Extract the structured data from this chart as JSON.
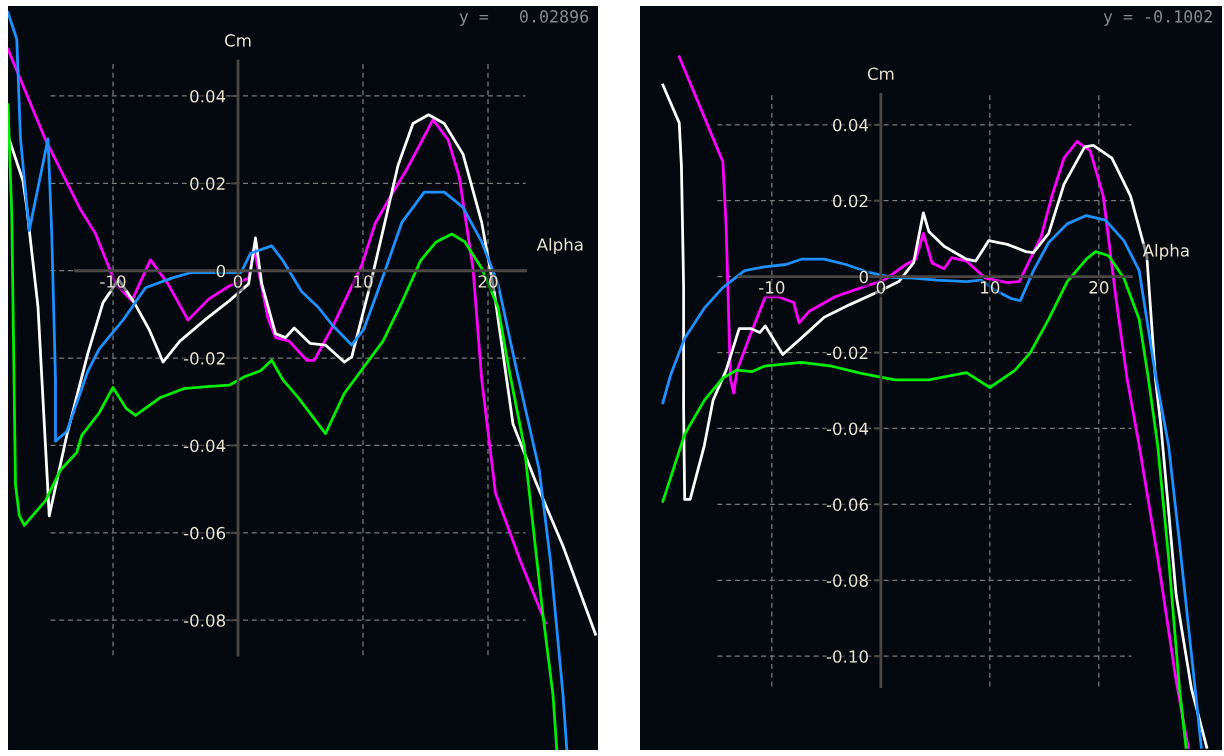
{
  "chart_data": [
    {
      "type": "line",
      "xlabel": "Alpha",
      "ylabel": "Cm",
      "xlim": [
        -18.4,
        28.8
      ],
      "ylim": [
        -0.1097,
        0.0606
      ],
      "xticks": [
        -10,
        0,
        10,
        20
      ],
      "yticks": [
        -0.08,
        -0.06,
        -0.04,
        -0.02,
        0,
        0.02,
        0.04
      ],
      "grid": true,
      "annotations": [
        "y =   0.02896"
      ],
      "series": [
        {
          "color": "#ff00ff",
          "x": [
            -18.4,
            -15.4,
            -12.6,
            -11.4,
            -9.8,
            -8.5,
            -7.0,
            -5.6,
            -4.0,
            -2.35,
            -0.7,
            0.85,
            1.3,
            2.4,
            3.0,
            4.1,
            5.5,
            6.1,
            7.6,
            9.9,
            11.0,
            12.2,
            13.6,
            15.6,
            16.8,
            17.7,
            18.8,
            19.5,
            20.6,
            22.6,
            24.6
          ],
          "values": [
            0.0507,
            0.03,
            0.014,
            0.0085,
            -0.003,
            -0.0069,
            0.0025,
            -0.003,
            -0.0113,
            -0.0065,
            -0.0035,
            -0.0017,
            0.0049,
            -0.0109,
            -0.0153,
            -0.0161,
            -0.0205,
            -0.0205,
            -0.0126,
            0.0013,
            0.011,
            0.017,
            0.0237,
            0.0346,
            0.03,
            0.0215,
            0.0005,
            -0.025,
            -0.0509,
            -0.0665,
            -0.0806
          ]
        },
        {
          "color": "#ffffff",
          "x": [
            -18.4,
            -17.2,
            -16.9,
            -16.0,
            -15.1,
            -13.7,
            -12.0,
            -10.8,
            -9.55,
            -8.3,
            -7.1,
            -6.0,
            -4.65,
            -2.5,
            -0.7,
            0.85,
            1.4,
            1.9,
            3.0,
            3.8,
            4.5,
            5.76,
            7.0,
            8.5,
            9.1,
            10.6,
            11.6,
            12.8,
            14.0,
            15.25,
            16.5,
            18.0,
            19.5,
            20.5,
            22.0,
            23.8,
            26.0,
            28.6
          ],
          "values": [
            0.0309,
            0.0206,
            0.0145,
            -0.0083,
            -0.0561,
            -0.0377,
            -0.0188,
            -0.0073,
            -0.002,
            -0.0073,
            -0.0135,
            -0.0209,
            -0.0161,
            -0.0109,
            -0.0069,
            -0.003,
            0.0075,
            -0.003,
            -0.0144,
            -0.0153,
            -0.0131,
            -0.0166,
            -0.017,
            -0.0209,
            -0.0197,
            -0.003,
            0.0092,
            0.0241,
            0.0337,
            0.0357,
            0.0337,
            0.0267,
            0.011,
            -0.0048,
            -0.0351,
            -0.0482,
            -0.063,
            -0.0832
          ]
        },
        {
          "color": "#1e90ff",
          "x": [
            -18.4,
            -17.7,
            -17.4,
            -16.7,
            -15.2,
            -14.9,
            -14.6,
            -14.6,
            -13.7,
            -12.0,
            -11.1,
            -9.2,
            -7.4,
            -5.3,
            -3.75,
            0.25,
            1.0,
            2.7,
            3.6,
            5.1,
            6.4,
            7.6,
            9.1,
            10.05,
            11.6,
            13.1,
            14.9,
            16.5,
            18.0,
            19.5,
            20.8,
            22.3,
            24.1,
            25.0,
            26.0,
            26.3
          ],
          "values": [
            0.0591,
            0.053,
            0.0302,
            0.0092,
            0.0302,
            0.0084,
            -0.0249,
            -0.039,
            -0.0368,
            -0.0229,
            -0.0179,
            -0.0113,
            -0.0039,
            -0.0017,
            -0.0004,
            -0.0004,
            0.004,
            0.0057,
            0.0023,
            -0.0048,
            -0.0083,
            -0.0126,
            -0.017,
            -0.0135,
            -0.0013,
            0.011,
            0.018,
            0.018,
            0.0145,
            0.0066,
            -0.003,
            -0.0229,
            -0.0456,
            -0.0665,
            -0.0971,
            -0.1095
          ]
        },
        {
          "color": "#00ee00",
          "x": [
            -18.4,
            -18.1,
            -17.8,
            -17.5,
            -17.1,
            -15.4,
            -14.2,
            -12.9,
            -12.5,
            -11.1,
            -10.0,
            -8.95,
            -8.2,
            -6.2,
            -4.35,
            -2.5,
            -0.7,
            0.55,
            1.8,
            2.7,
            3.6,
            4.8,
            7.0,
            8.5,
            11.6,
            13.1,
            14.6,
            15.85,
            17.1,
            18.15,
            19.5,
            20.8,
            21.7,
            22.9,
            24.4,
            25.2,
            25.5
          ],
          "values": [
            0.038,
            0.0128,
            -0.049,
            -0.056,
            -0.0583,
            -0.0526,
            -0.0456,
            -0.0416,
            -0.0377,
            -0.0325,
            -0.0267,
            -0.0315,
            -0.0331,
            -0.029,
            -0.027,
            -0.0265,
            -0.0262,
            -0.0242,
            -0.0229,
            -0.0205,
            -0.025,
            -0.029,
            -0.0373,
            -0.0281,
            -0.0161,
            -0.0073,
            0.0023,
            0.0066,
            0.0084,
            0.0066,
            0.0005,
            -0.0083,
            -0.0229,
            -0.0403,
            -0.0789,
            -0.0971,
            -0.1095
          ]
        }
      ]
    },
    {
      "type": "line",
      "xlabel": "Alpha",
      "ylabel": "Cm",
      "xlim": [
        -22.1,
        31.3
      ],
      "ylim": [
        -0.1247,
        0.0713
      ],
      "xticks": [
        -10,
        0,
        10,
        20
      ],
      "yticks": [
        {
          "value": -0.1,
          "label": "-0.10"
        },
        -0.08,
        -0.06,
        -0.04,
        -0.02,
        0,
        0.02,
        0.04
      ],
      "grid": true,
      "annotations": [
        "y = -0.1002"
      ],
      "series": [
        {
          "color": "#ff00ff",
          "x": [
            -18.5,
            -14.5,
            -14.2,
            -13.8,
            -13.5,
            -13.2,
            -12.1,
            -10.6,
            -9.4,
            -8.0,
            -7.5,
            -6.6,
            -4.2,
            -1.8,
            0.3,
            2.3,
            3.2,
            3.9,
            4.7,
            5.8,
            6.5,
            7.85,
            9.6,
            11.6,
            12.7,
            14.7,
            15.7,
            16.8,
            18.0,
            19.2,
            20.4,
            21.6,
            22.6,
            23.7,
            25.4,
            27.1,
            28.2
          ],
          "values": [
            0.0579,
            0.0303,
            0.0134,
            -0.027,
            -0.0307,
            -0.0247,
            -0.0162,
            -0.0053,
            -0.0053,
            -0.0068,
            -0.0122,
            -0.0092,
            -0.0053,
            -0.0029,
            -0.0009,
            0.0032,
            0.0046,
            0.0114,
            0.0036,
            0.0021,
            0.005,
            0.0041,
            -0.0004,
            -0.0016,
            -0.0013,
            0.0105,
            0.0213,
            0.0312,
            0.0356,
            0.0332,
            0.0213,
            -0.0063,
            -0.027,
            -0.0445,
            -0.074,
            -0.1066,
            -0.124
          ]
        },
        {
          "color": "#ffffff",
          "x": [
            -20.0,
            -18.5,
            -18.3,
            -18.1,
            -18.1,
            -18.1,
            -18.0,
            -17.5,
            -16.2,
            -15.4,
            -14.2,
            -13.0,
            -11.9,
            -11.1,
            -10.6,
            -9.0,
            -7.3,
            -5.2,
            -2.8,
            -0.1,
            1.65,
            3.0,
            3.9,
            4.4,
            5.8,
            7.85,
            8.7,
            9.9,
            11.6,
            13.3,
            14.0,
            15.4,
            16.8,
            18.7,
            19.5,
            21.2,
            22.9,
            24.4,
            25.2,
            25.7,
            27.1,
            28.5,
            29.9
          ],
          "values": [
            0.0505,
            0.0405,
            0.0292,
            -0.0024,
            -0.027,
            -0.0346,
            -0.0587,
            -0.0587,
            -0.0445,
            -0.0326,
            -0.0247,
            -0.0137,
            -0.0137,
            -0.0147,
            -0.013,
            -0.0205,
            -0.0162,
            -0.0107,
            -0.0073,
            -0.0038,
            -0.0013,
            0.0036,
            0.0168,
            0.0119,
            0.008,
            0.0046,
            0.0041,
            0.0095,
            0.0085,
            0.0066,
            0.0063,
            0.0114,
            0.0243,
            0.0342,
            0.0346,
            0.0312,
            0.0213,
            0.0055,
            -0.027,
            -0.0395,
            -0.084,
            -0.1086,
            -0.124
          ]
        },
        {
          "color": "#1e90ff",
          "x": [
            -20.0,
            -19.3,
            -18.0,
            -16.2,
            -14.5,
            -12.5,
            -10.7,
            -8.7,
            -7.3,
            -5.2,
            -3.2,
            -1.1,
            1.0,
            3.0,
            5.1,
            7.85,
            9.2,
            10.6,
            12.0,
            12.8,
            14.0,
            15.4,
            17.1,
            18.85,
            20.6,
            22.3,
            23.7,
            25.2,
            26.4,
            27.4,
            28.8,
            29.4
          ],
          "values": [
            -0.0332,
            -0.026,
            -0.0162,
            -0.0083,
            -0.0029,
            0.0016,
            0.0026,
            0.0032,
            0.0046,
            0.0046,
            0.0032,
            0.0011,
            -0.0002,
            -0.0004,
            -0.0009,
            -0.0013,
            -0.0009,
            -0.0038,
            -0.0058,
            -0.0063,
            0.0016,
            0.009,
            0.0139,
            0.0161,
            0.0149,
            0.0095,
            0.0016,
            -0.026,
            -0.0445,
            -0.0701,
            -0.1076,
            -0.124
          ]
        },
        {
          "color": "#00ee00",
          "x": [
            -20.0,
            -19.0,
            -18.0,
            -16.2,
            -14.5,
            -13.2,
            -11.8,
            -10.7,
            -7.3,
            -4.5,
            -1.8,
            1.3,
            4.4,
            7.85,
            10.0,
            12.3,
            13.7,
            15.4,
            17.1,
            18.85,
            19.7,
            20.9,
            22.3,
            23.7,
            24.5,
            25.4,
            26.4,
            27.4,
            28.0
          ],
          "values": [
            -0.0592,
            -0.0504,
            -0.0415,
            -0.0326,
            -0.0267,
            -0.0246,
            -0.025,
            -0.0236,
            -0.0226,
            -0.0236,
            -0.0255,
            -0.0272,
            -0.0272,
            -0.0253,
            -0.0292,
            -0.0247,
            -0.0201,
            -0.0112,
            -0.0013,
            0.0046,
            0.0066,
            0.0055,
            -0.0004,
            -0.0112,
            -0.026,
            -0.0445,
            -0.074,
            -0.1086,
            -0.124
          ]
        }
      ]
    }
  ]
}
